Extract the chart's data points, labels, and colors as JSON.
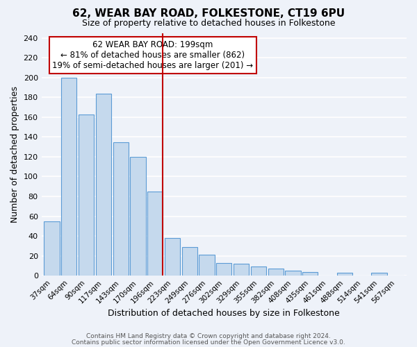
{
  "title": "62, WEAR BAY ROAD, FOLKESTONE, CT19 6PU",
  "subtitle": "Size of property relative to detached houses in Folkestone",
  "xlabel": "Distribution of detached houses by size in Folkestone",
  "ylabel": "Number of detached properties",
  "bar_labels": [
    "37sqm",
    "64sqm",
    "90sqm",
    "117sqm",
    "143sqm",
    "170sqm",
    "196sqm",
    "223sqm",
    "249sqm",
    "276sqm",
    "302sqm",
    "329sqm",
    "355sqm",
    "382sqm",
    "408sqm",
    "435sqm",
    "461sqm",
    "488sqm",
    "514sqm",
    "541sqm",
    "567sqm"
  ],
  "bar_values": [
    55,
    200,
    163,
    184,
    135,
    120,
    85,
    38,
    29,
    21,
    13,
    12,
    9,
    7,
    5,
    4,
    0,
    3,
    0,
    3,
    0
  ],
  "bar_color": "#c5d9ed",
  "bar_edge_color": "#5b9bd5",
  "highlight_bar_index": 6,
  "highlight_right_line_color": "#c00000",
  "annotation_box_text": "62 WEAR BAY ROAD: 199sqm\n← 81% of detached houses are smaller (862)\n19% of semi-detached houses are larger (201) →",
  "annotation_box_facecolor": "white",
  "annotation_box_edgecolor": "#c00000",
  "ylim": [
    0,
    245
  ],
  "yticks": [
    0,
    20,
    40,
    60,
    80,
    100,
    120,
    140,
    160,
    180,
    200,
    220,
    240
  ],
  "footer_line1": "Contains HM Land Registry data © Crown copyright and database right 2024.",
  "footer_line2": "Contains public sector information licensed under the Open Government Licence v3.0.",
  "background_color": "#eef2f9",
  "grid_color": "white"
}
